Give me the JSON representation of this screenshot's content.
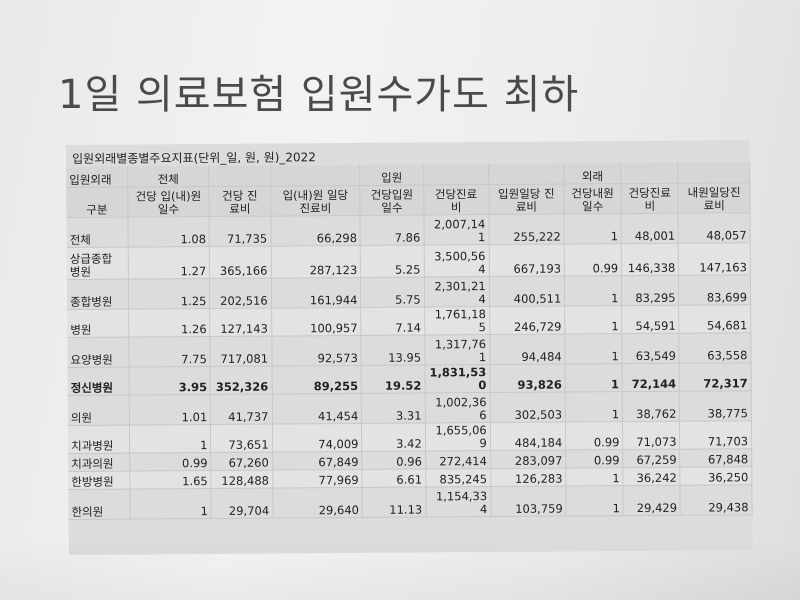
{
  "title": "1일 의료보험 입원수가도 최하",
  "table": {
    "caption": "입원외래별종별주요지표(단위_일, 원, 원)_2022",
    "header_row1": [
      "입원외래",
      "전체",
      "",
      "",
      "입원",
      "",
      "",
      "외래",
      "",
      ""
    ],
    "header_row2": [
      "구분",
      "건당 입(내)원\n일수",
      "건당 진\n료비",
      "입(내)원 일당\n진료비",
      "건당입원\n일수",
      "건당진료\n비",
      "입원일당 진\n료비",
      "건당내원\n일수",
      "건당진료\n비",
      "내원일당진\n료비"
    ],
    "rows": [
      {
        "label": "전체",
        "cells": [
          "1.08",
          "71,735",
          "66,298",
          "7.86",
          "2,007,14\n1",
          "255,222",
          "1",
          "48,001",
          "48,057"
        ]
      },
      {
        "label": "상급종합\n병원",
        "cells": [
          "1.27",
          "365,166",
          "287,123",
          "5.25",
          "3,500,56\n4",
          "667,193",
          "0.99",
          "146,338",
          "147,163"
        ]
      },
      {
        "label": "종합병원",
        "cells": [
          "1.25",
          "202,516",
          "161,944",
          "5.75",
          "2,301,21\n4",
          "400,511",
          "1",
          "83,295",
          "83,699"
        ]
      },
      {
        "label": "병원",
        "cells": [
          "1.26",
          "127,143",
          "100,957",
          "7.14",
          "1,761,18\n5",
          "246,729",
          "1",
          "54,591",
          "54,681"
        ]
      },
      {
        "label": "요양병원",
        "cells": [
          "7.75",
          "717,081",
          "92,573",
          "13.95",
          "1,317,76\n1",
          "94,484",
          "1",
          "63,549",
          "63,558"
        ]
      },
      {
        "label": "정신병원",
        "cells": [
          "3.95",
          "352,326",
          "89,255",
          "19.52",
          "1,831,53\n0",
          "93,826",
          "1",
          "72,144",
          "72,317"
        ]
      },
      {
        "label": "의원",
        "cells": [
          "1.01",
          "41,737",
          "41,454",
          "3.31",
          "1,002,36\n6",
          "302,503",
          "1",
          "38,762",
          "38,775"
        ]
      },
      {
        "label": "치과병원",
        "cells": [
          "1",
          "73,651",
          "74,009",
          "3.42",
          "1,655,06\n9",
          "484,184",
          "0.99",
          "71,073",
          "71,703"
        ]
      },
      {
        "label": "치과의원",
        "cells": [
          "0.99",
          "67,260",
          "67,849",
          "0.96",
          "272,414",
          "283,097",
          "0.99",
          "67,259",
          "67,848"
        ]
      },
      {
        "label": "한방병원",
        "cells": [
          "1.65",
          "128,488",
          "77,969",
          "6.61",
          "835,245",
          "126,283",
          "1",
          "36,242",
          "36,250"
        ]
      },
      {
        "label": "한의원",
        "cells": [
          "1",
          "29,704",
          "29,640",
          "11.13",
          "1,154,33\n4",
          "103,759",
          "1",
          "29,429",
          "29,438"
        ]
      }
    ]
  }
}
